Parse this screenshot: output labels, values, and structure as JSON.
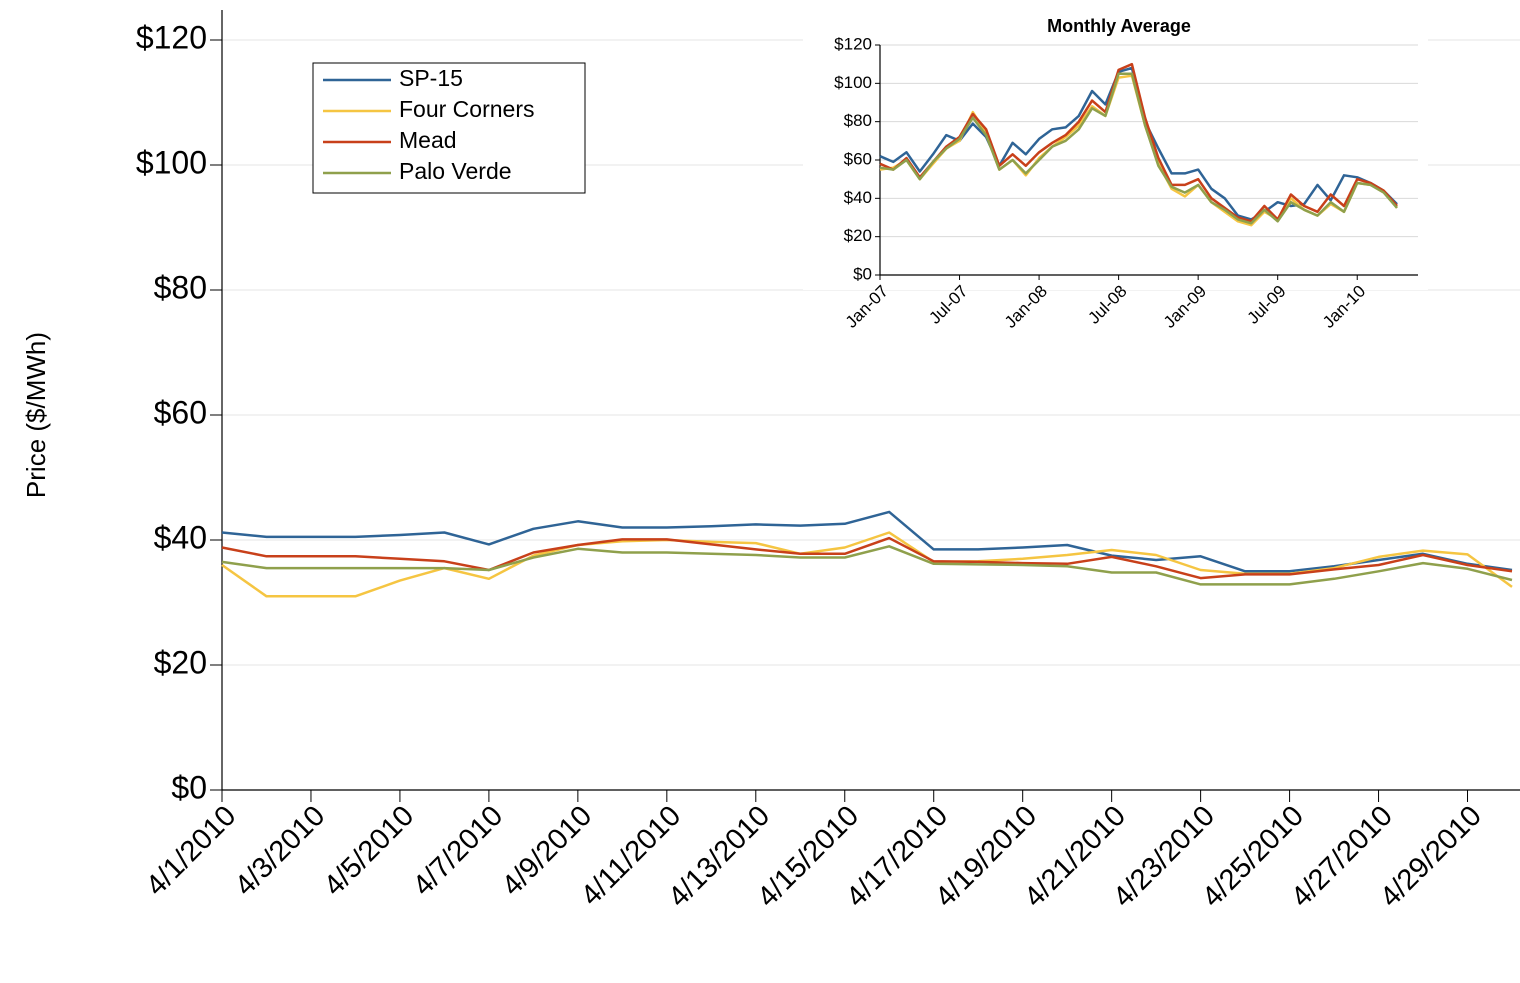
{
  "chart_data": [
    {
      "type": "line",
      "y_label": "Price ($/MWh)",
      "categories": [
        "4/1/2010",
        null,
        "4/3/2010",
        null,
        "4/5/2010",
        null,
        "4/7/2010",
        null,
        "4/9/2010",
        null,
        "4/11/2010",
        null,
        "4/13/2010",
        null,
        "4/15/2010",
        null,
        "4/17/2010",
        null,
        "4/19/2010",
        null,
        "4/21/2010",
        null,
        "4/23/2010",
        null,
        "4/25/2010",
        null,
        "4/27/2010",
        null,
        "4/29/2010",
        null
      ],
      "series": [
        {
          "name": "SP-15",
          "color": "#2F6496",
          "values": [
            41.2,
            40.5,
            40.5,
            40.5,
            40.8,
            41.2,
            39.3,
            41.8,
            43,
            42,
            42,
            42.2,
            42.5,
            42.3,
            42.6,
            44.5,
            38.5,
            38.5,
            38.8,
            39.2,
            37.5,
            36.8,
            37.4,
            35,
            35,
            35.8,
            36.8,
            37.8,
            36.2,
            35.2
          ]
        },
        {
          "name": "Four Corners",
          "color": "#F5C542",
          "values": [
            36,
            31,
            31,
            31,
            33.5,
            35.5,
            33.8,
            37.5,
            39.2,
            39.8,
            40,
            39.7,
            39.5,
            37.8,
            38.8,
            41.2,
            36.5,
            36.6,
            37,
            37.6,
            38.4,
            37.6,
            35.2,
            34.6,
            34.6,
            35.5,
            37.3,
            38.3,
            37.7,
            32.5
          ]
        },
        {
          "name": "Mead",
          "color": "#C8401A",
          "values": [
            38.8,
            37.4,
            37.4,
            37.4,
            37,
            36.6,
            35.2,
            38,
            39.2,
            40.1,
            40.1,
            39.3,
            38.5,
            37.8,
            37.8,
            40.3,
            36.6,
            36.5,
            36.3,
            36.2,
            37.3,
            35.8,
            33.9,
            34.5,
            34.5,
            35.3,
            36,
            37.6,
            36,
            35
          ]
        },
        {
          "name": "Palo Verde",
          "color": "#8FA04C",
          "values": [
            36.5,
            35.5,
            35.5,
            35.5,
            35.5,
            35.5,
            35.2,
            37.2,
            38.6,
            38,
            38,
            37.8,
            37.6,
            37.2,
            37.2,
            39,
            36.2,
            36.1,
            36,
            35.8,
            34.8,
            34.8,
            32.9,
            32.9,
            32.9,
            33.8,
            35,
            36.3,
            35.4,
            33.6
          ]
        }
      ],
      "ylim": [
        0,
        120
      ],
      "yticks": [
        {
          "value": 0,
          "label": "$0"
        },
        {
          "value": 20,
          "label": "$20"
        },
        {
          "value": 40,
          "label": "$40"
        },
        {
          "value": 60,
          "label": "$60"
        },
        {
          "value": 80,
          "label": "$80"
        },
        {
          "value": 100,
          "label": "$100"
        },
        {
          "value": 120,
          "label": "$120"
        }
      ],
      "grid": true,
      "legend": "upper left"
    },
    {
      "type": "line",
      "title": "Monthly Average",
      "categories": [
        "Jan-07",
        null,
        null,
        null,
        null,
        null,
        "Jul-07",
        null,
        null,
        null,
        null,
        null,
        "Jan-08",
        null,
        null,
        null,
        null,
        null,
        "Jul-08",
        null,
        null,
        null,
        null,
        null,
        "Jan-09",
        null,
        null,
        null,
        null,
        null,
        "Jul-09",
        null,
        null,
        null,
        null,
        null,
        "Jan-10",
        null,
        null,
        null
      ],
      "series": [
        {
          "color": "#2F6496",
          "values": [
            62,
            59,
            64,
            54,
            63,
            73,
            70,
            79,
            72,
            57,
            69,
            63,
            71,
            76,
            77,
            83,
            96,
            89,
            106,
            108,
            80,
            66,
            53,
            53,
            55,
            45,
            40,
            31,
            29,
            33,
            38,
            36,
            37,
            47,
            39,
            52,
            51,
            48,
            44,
            37
          ]
        },
        {
          "color": "#F5C542",
          "values": [
            55,
            56,
            60,
            50,
            58,
            66,
            70,
            85,
            74,
            55,
            60,
            52,
            61,
            67,
            72,
            78,
            88,
            83,
            103,
            104,
            78,
            58,
            45,
            41,
            47,
            38,
            33,
            28,
            26,
            33,
            29,
            40,
            34,
            31,
            37,
            33,
            48,
            47,
            44,
            35
          ]
        },
        {
          "color": "#C8401A",
          "values": [
            58,
            55,
            61,
            51,
            59,
            67,
            72,
            84,
            76,
            57,
            63,
            57,
            64,
            69,
            73,
            80,
            91,
            85,
            107,
            110,
            82,
            61,
            47,
            47,
            50,
            40,
            35,
            30,
            28,
            36,
            29,
            42,
            36,
            33,
            42,
            36,
            50,
            48,
            44,
            36
          ]
        },
        {
          "color": "#8FA04C",
          "values": [
            56,
            55,
            60,
            50,
            59,
            66,
            71,
            82,
            73,
            55,
            60,
            53,
            60,
            67,
            70,
            76,
            87,
            83,
            105,
            105,
            78,
            57,
            46,
            43,
            47,
            38,
            34,
            29,
            27,
            34,
            28,
            38,
            34,
            31,
            38,
            33,
            48,
            47,
            43,
            35
          ]
        }
      ],
      "ylim": [
        0,
        120
      ],
      "yticks": [
        {
          "value": 0,
          "label": "$0"
        },
        {
          "value": 20,
          "label": "$20"
        },
        {
          "value": 40,
          "label": "$40"
        },
        {
          "value": 60,
          "label": "$60"
        },
        {
          "value": 80,
          "label": "$80"
        },
        {
          "value": 100,
          "label": "$100"
        },
        {
          "value": 120,
          "label": "$120"
        }
      ],
      "grid": true
    }
  ]
}
